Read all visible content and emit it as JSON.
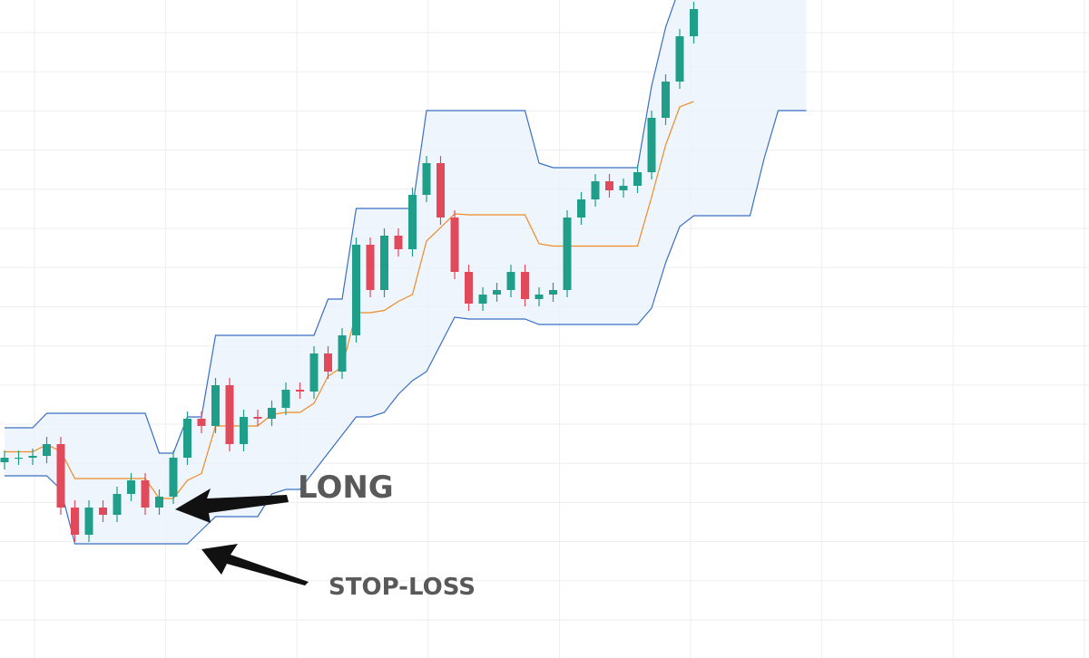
{
  "chart_data": {
    "type": "candlestick",
    "categories": [
      null,
      null,
      null,
      null,
      null,
      null,
      null,
      null,
      null,
      null,
      null,
      null,
      null,
      null,
      null,
      null,
      null,
      null,
      null,
      null,
      null,
      null,
      null,
      null,
      null,
      null,
      null,
      null,
      null,
      null,
      null,
      null,
      null,
      null,
      null,
      null,
      null,
      null,
      null,
      null,
      null,
      null,
      null,
      null,
      null,
      null,
      null,
      null,
      null,
      null,
      null,
      null,
      null,
      null,
      null,
      null,
      null,
      null
    ],
    "ylim": [
      0,
      726
    ],
    "up_color": "#1f9e89",
    "down_color": "#e04a5a",
    "open": [
      216,
      221,
      221,
      223,
      236,
      166,
      136,
      166,
      158,
      181,
      196,
      166,
      178,
      221,
      264,
      256,
      301,
      236,
      266,
      264,
      276,
      296,
      294,
      336,
      316,
      356,
      456,
      406,
      466,
      451,
      511,
      546,
      486,
      426,
      391,
      401,
      406,
      426,
      396,
      401,
      406,
      486,
      506,
      526,
      516,
      521,
      536,
      596,
      636,
      686,
      null,
      null,
      null,
      null,
      null,
      null,
      null,
      null
    ],
    "high": [
      229,
      229,
      231,
      244,
      244,
      174,
      174,
      174,
      189,
      204,
      204,
      186,
      229,
      272,
      272,
      309,
      309,
      274,
      274,
      284,
      304,
      304,
      344,
      344,
      364,
      464,
      464,
      474,
      474,
      519,
      554,
      554,
      494,
      434,
      409,
      414,
      434,
      434,
      409,
      414,
      494,
      514,
      534,
      534,
      529,
      544,
      604,
      644,
      694,
      724,
      null,
      null,
      null,
      null,
      null,
      null,
      null,
      null
    ],
    "low": [
      208,
      213,
      213,
      215,
      158,
      128,
      128,
      150,
      150,
      173,
      158,
      158,
      170,
      213,
      248,
      248,
      228,
      228,
      256,
      256,
      268,
      286,
      286,
      308,
      308,
      348,
      398,
      398,
      443,
      443,
      503,
      478,
      418,
      383,
      383,
      393,
      398,
      388,
      388,
      393,
      398,
      478,
      498,
      508,
      508,
      513,
      528,
      588,
      628,
      678,
      null,
      null,
      null,
      null,
      null,
      null,
      null,
      null
    ],
    "close": [
      221,
      221,
      223,
      236,
      166,
      136,
      166,
      158,
      181,
      196,
      166,
      178,
      221,
      264,
      256,
      301,
      236,
      266,
      264,
      276,
      296,
      294,
      336,
      316,
      356,
      456,
      406,
      466,
      451,
      511,
      546,
      486,
      426,
      391,
      401,
      406,
      426,
      396,
      401,
      406,
      486,
      506,
      526,
      516,
      521,
      536,
      596,
      636,
      686,
      716,
      null,
      null,
      null,
      null,
      null,
      null,
      null,
      null
    ],
    "channel": {
      "color": "#3b6fc4",
      "fill": "#eaf2fb",
      "middle_color": "#f08a24",
      "upper": [
        254,
        254,
        254,
        270,
        270,
        270,
        270,
        270,
        270,
        270,
        270,
        226,
        226,
        266,
        266,
        356,
        356,
        356,
        356,
        356,
        356,
        356,
        356,
        396,
        396,
        496,
        496,
        496,
        496,
        496,
        604,
        604,
        604,
        604,
        604,
        604,
        604,
        604,
        546,
        541,
        541,
        541,
        541,
        541,
        541,
        541,
        631,
        696,
        740,
        740,
        740,
        740,
        740,
        740,
        740,
        740,
        740,
        740
      ],
      "middle": [
        227.5,
        227.5,
        227.5,
        235.5,
        228,
        198,
        198,
        198,
        198,
        198,
        198,
        176,
        176,
        196,
        203.5,
        256,
        256,
        256,
        256,
        268.5,
        271,
        271,
        281,
        311,
        321,
        381,
        381,
        383.5,
        393.5,
        401,
        460,
        475,
        490,
        489,
        489,
        489,
        489,
        489,
        457,
        454.5,
        454.5,
        454.5,
        454.5,
        454.5,
        454.5,
        454.5,
        508.5,
        566,
        608,
        614,
        null,
        null,
        null,
        null,
        null,
        null,
        null,
        null
      ],
      "lower": [
        201,
        201,
        201,
        201,
        186,
        126,
        126,
        126,
        126,
        126,
        126,
        126,
        126,
        126,
        141,
        156,
        156,
        156,
        156,
        181,
        186,
        186,
        206,
        226,
        246,
        266,
        266,
        271,
        291,
        306,
        316,
        346,
        376,
        374,
        374,
        374,
        374,
        374,
        368,
        368,
        368,
        368,
        368,
        368,
        368,
        368,
        386,
        436,
        476,
        488,
        488,
        488,
        488,
        488,
        551,
        604,
        604,
        604
      ]
    },
    "annotations": [
      "LONG",
      "STOP-LOSS"
    ]
  }
}
